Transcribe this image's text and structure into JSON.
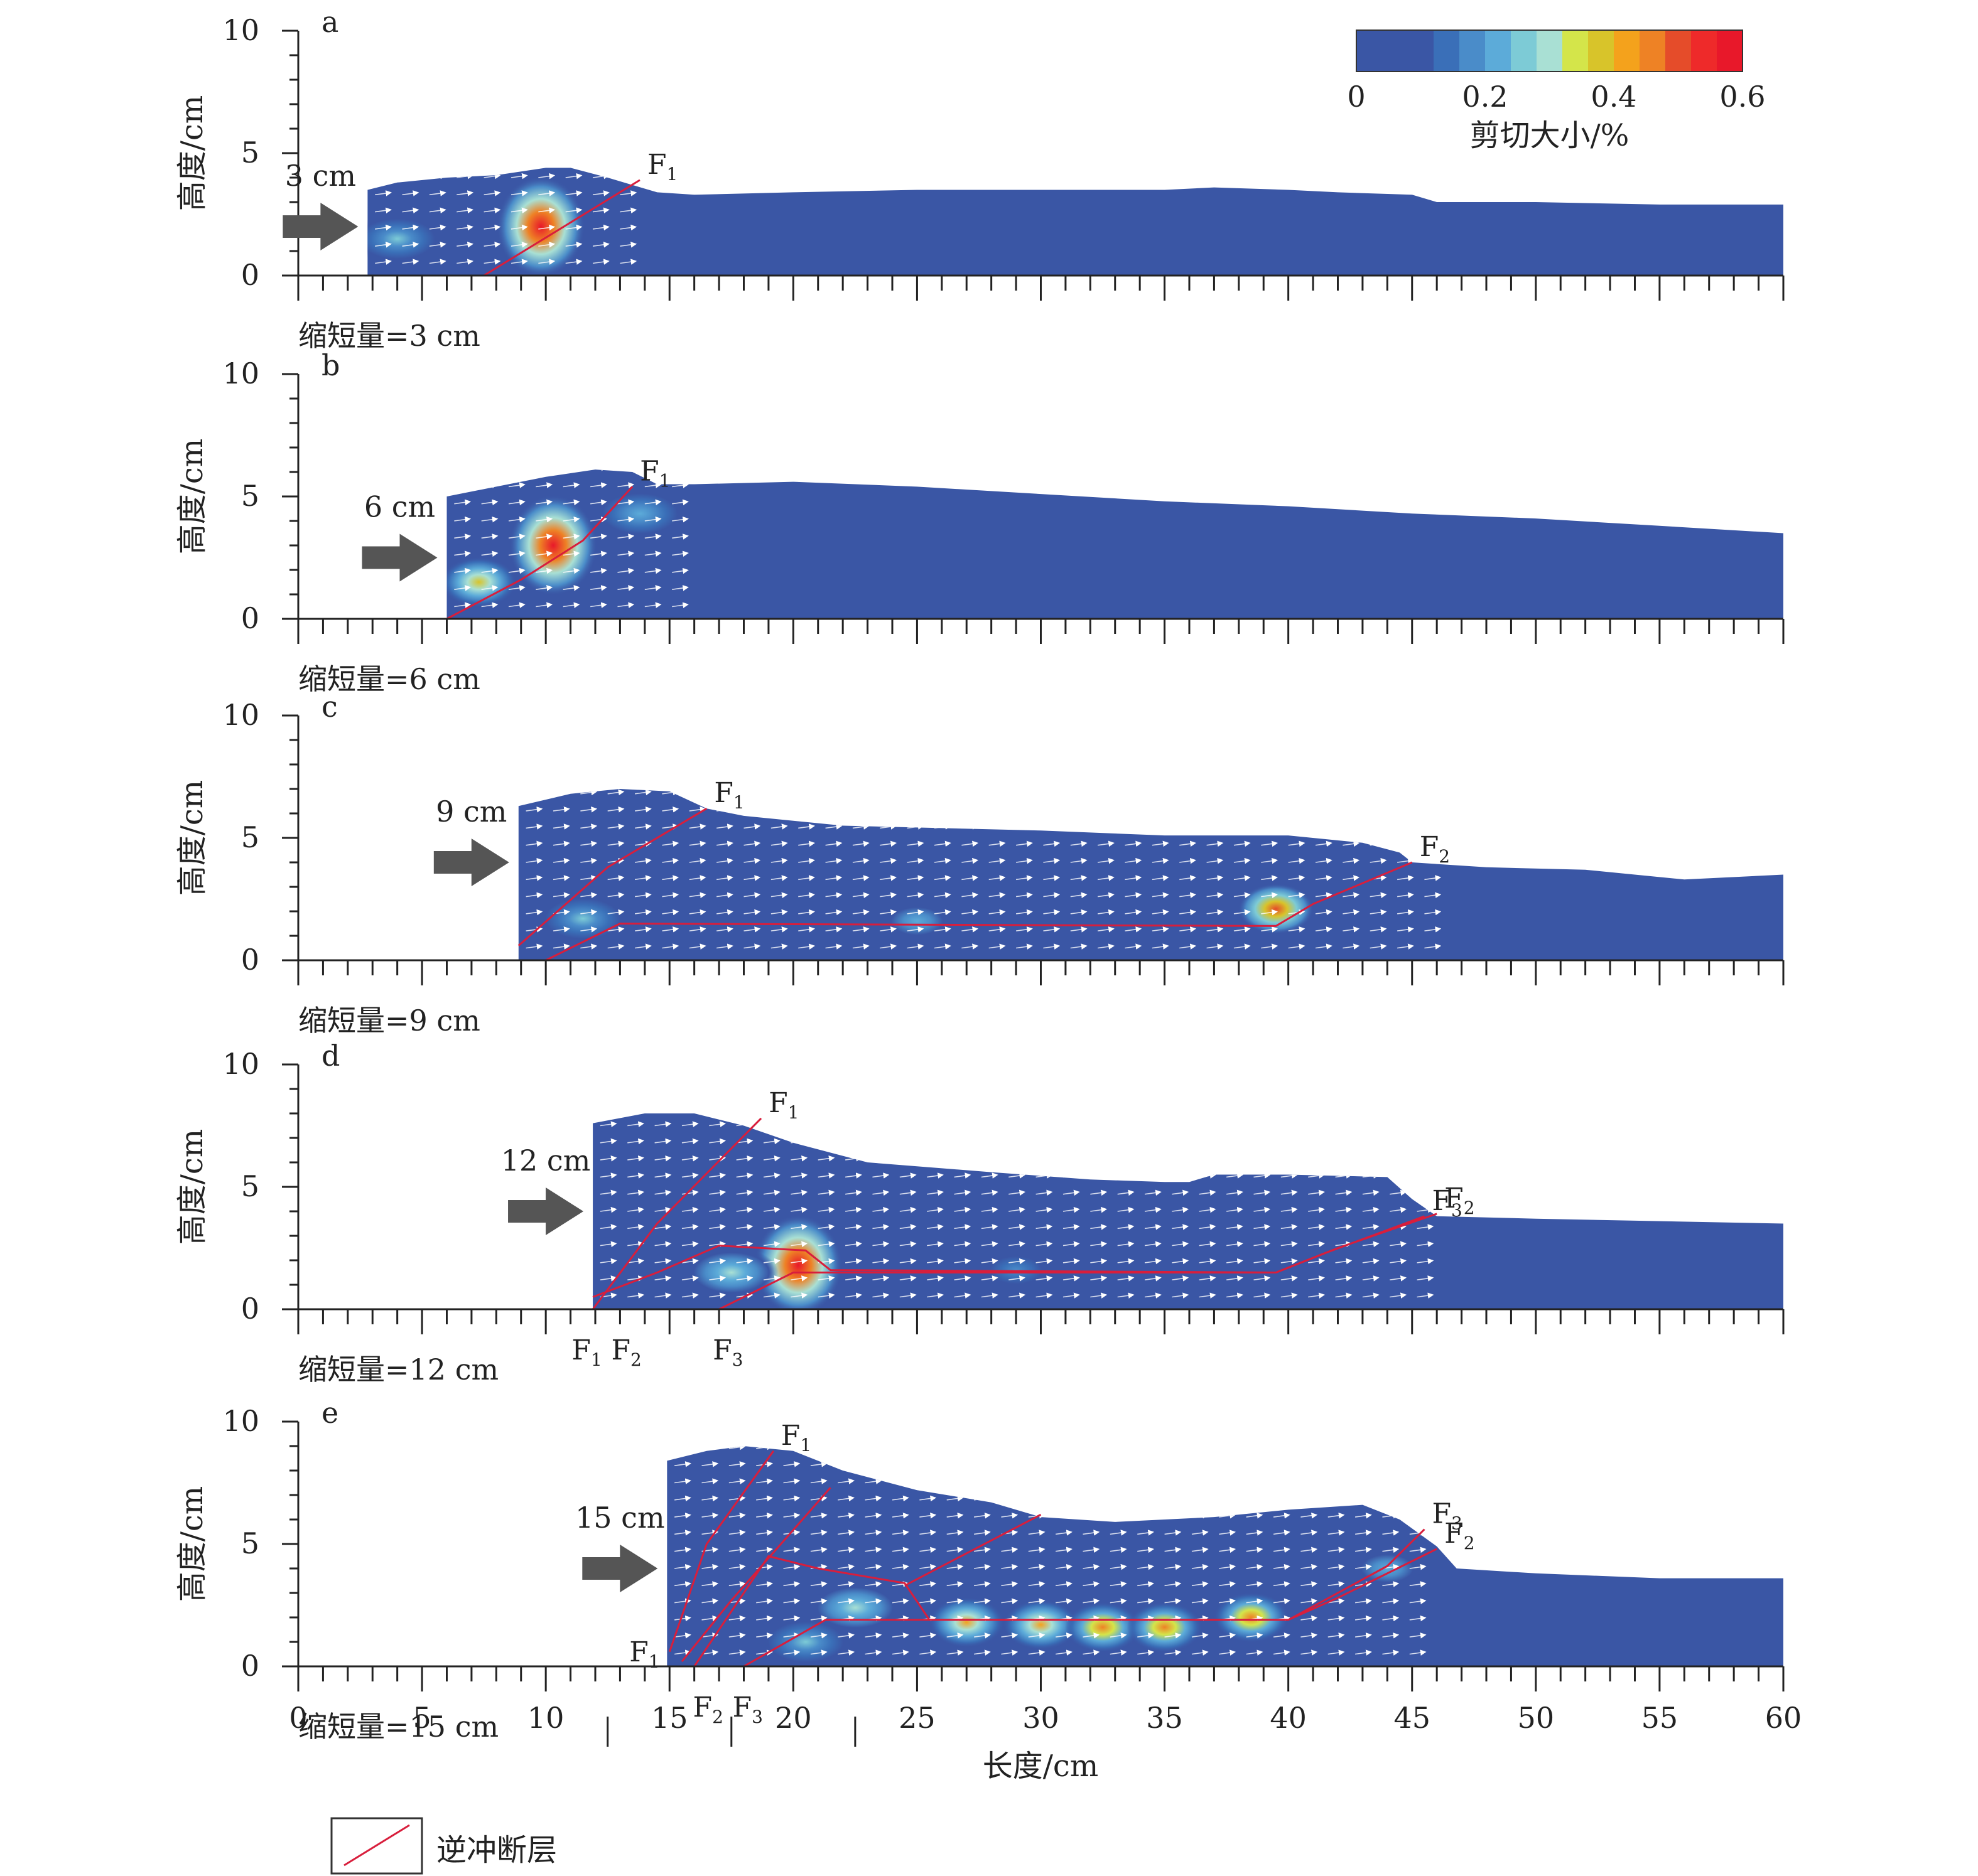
{
  "figure": {
    "y_axis_label": "高度/cm",
    "x_axis_label": "长度/cm",
    "legend": {
      "label": "逆冲断层",
      "line_color": "#d81e3c"
    }
  },
  "colorbar": {
    "label": "剪切大小/%",
    "tick_labels": [
      "0",
      "0.2",
      "0.4",
      "0.6"
    ],
    "ticks": [
      0,
      0.2,
      0.4,
      0.6
    ],
    "range": [
      0,
      0.6
    ],
    "colors": [
      "#3a56a5",
      "#3a56a5",
      "#3a56a5",
      "#3a6fb8",
      "#4a8cc9",
      "#5cabd9",
      "#7dcbd6",
      "#a9e0d4",
      "#d4e54a",
      "#d8c42a",
      "#f4a21c",
      "#ee8225",
      "#e54c2a",
      "#ee2a2a",
      "#e8182a"
    ]
  },
  "chart_data": {
    "type": "heatmap",
    "description_of_axes": "x = length (cm), y = height (cm)",
    "xlim": [
      0,
      60
    ],
    "ylim": [
      0,
      10
    ],
    "x_ticks": [
      0,
      5,
      10,
      15,
      20,
      25,
      30,
      35,
      40,
      45,
      50,
      55,
      60
    ],
    "x_tick_labels": [
      "0",
      "5",
      "10",
      "15",
      "20",
      "25",
      "30",
      "35",
      "40",
      "45",
      "50",
      "55",
      "60"
    ],
    "y_ticks": [
      0,
      5,
      10
    ],
    "y_tick_labels": [
      "0",
      "5",
      "10"
    ],
    "panels": [
      {
        "panel": "a",
        "shortening_label": "缩短量=3 cm",
        "push_label": "3 cm",
        "surface": [
          [
            2.8,
            3.5
          ],
          [
            4,
            3.8
          ],
          [
            6,
            4.0
          ],
          [
            8,
            4.1
          ],
          [
            10,
            4.4
          ],
          [
            11,
            4.4
          ],
          [
            12.5,
            4.0
          ],
          [
            13.5,
            3.7
          ],
          [
            14.5,
            3.4
          ],
          [
            16,
            3.3
          ],
          [
            20,
            3.4
          ],
          [
            25,
            3.5
          ],
          [
            30,
            3.5
          ],
          [
            35,
            3.5
          ],
          [
            37,
            3.6
          ],
          [
            40,
            3.5
          ],
          [
            42,
            3.4
          ],
          [
            45,
            3.3
          ],
          [
            46,
            3.0
          ],
          [
            50,
            3.0
          ],
          [
            55,
            2.9
          ],
          [
            60,
            2.9
          ]
        ],
        "faults": [
          {
            "name": "F1",
            "label": "F",
            "sub": "1",
            "points": [
              [
                7.5,
                0
              ],
              [
                13.8,
                3.9
              ]
            ]
          }
        ],
        "hotspots": [
          {
            "x": 9.8,
            "y": 2.0,
            "level": 0.6
          },
          {
            "x": 4.0,
            "y": 1.5,
            "level": 0.25
          }
        ]
      },
      {
        "panel": "b",
        "shortening_label": "缩短量=6 cm",
        "push_label": "6 cm",
        "surface": [
          [
            6,
            5.0
          ],
          [
            8,
            5.4
          ],
          [
            10,
            5.8
          ],
          [
            12,
            6.1
          ],
          [
            13.5,
            6.0
          ],
          [
            14.5,
            5.5
          ],
          [
            16,
            5.5
          ],
          [
            20,
            5.6
          ],
          [
            25,
            5.4
          ],
          [
            30,
            5.1
          ],
          [
            35,
            4.8
          ],
          [
            40,
            4.6
          ],
          [
            45,
            4.3
          ],
          [
            50,
            4.1
          ],
          [
            55,
            3.8
          ],
          [
            60,
            3.5
          ]
        ],
        "faults": [
          {
            "name": "F1",
            "label": "F",
            "sub": "1",
            "points": [
              [
                6,
                0
              ],
              [
                9,
                1.6
              ],
              [
                11.5,
                3.2
              ],
              [
                13.5,
                5.4
              ]
            ]
          }
        ],
        "hotspots": [
          {
            "x": 10.3,
            "y": 3.0,
            "level": 0.6
          },
          {
            "x": 7.3,
            "y": 1.5,
            "level": 0.4
          },
          {
            "x": 13.8,
            "y": 4.3,
            "level": 0.22
          }
        ]
      },
      {
        "panel": "c",
        "shortening_label": "缩短量=9 cm",
        "push_label": "9 cm",
        "surface": [
          [
            8.9,
            6.3
          ],
          [
            11,
            6.8
          ],
          [
            13,
            7.0
          ],
          [
            15,
            6.9
          ],
          [
            16.5,
            6.2
          ],
          [
            18,
            5.9
          ],
          [
            22,
            5.5
          ],
          [
            26,
            5.4
          ],
          [
            30,
            5.3
          ],
          [
            35,
            5.1
          ],
          [
            37,
            5.1
          ],
          [
            40,
            5.1
          ],
          [
            43,
            4.8
          ],
          [
            44.5,
            4.4
          ],
          [
            45,
            4.0
          ],
          [
            48,
            3.8
          ],
          [
            52,
            3.7
          ],
          [
            56,
            3.3
          ],
          [
            60,
            3.5
          ]
        ],
        "faults": [
          {
            "name": "F1",
            "label": "F",
            "sub": "1",
            "points": [
              [
                8.9,
                0.6
              ],
              [
                12.5,
                3.8
              ],
              [
                16.5,
                6.2
              ]
            ]
          },
          {
            "name": "F2",
            "label": "F",
            "sub": "2",
            "points": [
              [
                10,
                0
              ],
              [
                13,
                1.5
              ],
              [
                39.5,
                1.4
              ],
              [
                41,
                2.3
              ],
              [
                45,
                4.0
              ]
            ]
          }
        ],
        "hotspots": [
          {
            "x": 39.5,
            "y": 2.1,
            "level": 0.5
          },
          {
            "x": 11.5,
            "y": 1.7,
            "level": 0.25
          },
          {
            "x": 25,
            "y": 1.6,
            "level": 0.2
          }
        ]
      },
      {
        "panel": "d",
        "shortening_label": "缩短量=12 cm",
        "push_label": "12 cm",
        "surface": [
          [
            11.9,
            7.6
          ],
          [
            14,
            8.0
          ],
          [
            16,
            8.0
          ],
          [
            18,
            7.5
          ],
          [
            20,
            6.8
          ],
          [
            23,
            6.0
          ],
          [
            28,
            5.6
          ],
          [
            32,
            5.3
          ],
          [
            35,
            5.2
          ],
          [
            36,
            5.2
          ],
          [
            37,
            5.5
          ],
          [
            40,
            5.5
          ],
          [
            44,
            5.4
          ],
          [
            45,
            4.5
          ],
          [
            46,
            3.8
          ],
          [
            50,
            3.7
          ],
          [
            55,
            3.6
          ],
          [
            60,
            3.5
          ]
        ],
        "faults": [
          {
            "name": "F1",
            "label": "F",
            "sub": "1",
            "points": [
              [
                11.9,
                0
              ],
              [
                14.5,
                3.5
              ],
              [
                18.7,
                7.8
              ]
            ]
          },
          {
            "name": "F2",
            "label": "F",
            "sub": "2",
            "points": [
              [
                11.9,
                0.5
              ],
              [
                14.5,
                1.5
              ],
              [
                17,
                2.6
              ],
              [
                20.5,
                2.4
              ],
              [
                21.5,
                1.6
              ],
              [
                39.5,
                1.5
              ],
              [
                42,
                2.5
              ],
              [
                46,
                3.9
              ]
            ]
          },
          {
            "name": "F3",
            "label": "F",
            "sub": "3",
            "points": [
              [
                17,
                0
              ],
              [
                20,
                1.5
              ],
              [
                39.5,
                1.5
              ],
              [
                41.5,
                2.3
              ],
              [
                45.5,
                3.8
              ]
            ]
          }
        ],
        "hotspots": [
          {
            "x": 20.2,
            "y": 1.8,
            "level": 0.6
          },
          {
            "x": 17.5,
            "y": 1.5,
            "level": 0.3
          },
          {
            "x": 29,
            "y": 1.6,
            "level": 0.18
          }
        ],
        "bottom_labels": [
          {
            "label": "F",
            "sub": "1",
            "x": 11.3
          },
          {
            "label": "F",
            "sub": "2",
            "x": 12.9
          },
          {
            "label": "F",
            "sub": "3",
            "x": 17.0
          }
        ]
      },
      {
        "panel": "e",
        "shortening_label": "缩短量=15 cm",
        "push_label": "15 cm",
        "surface": [
          [
            14.9,
            8.4
          ],
          [
            16.5,
            8.8
          ],
          [
            18,
            9.0
          ],
          [
            20,
            8.8
          ],
          [
            22,
            8.0
          ],
          [
            25,
            7.2
          ],
          [
            28,
            6.7
          ],
          [
            30,
            6.1
          ],
          [
            33,
            5.9
          ],
          [
            37,
            6.1
          ],
          [
            40,
            6.4
          ],
          [
            43,
            6.6
          ],
          [
            44.5,
            6.0
          ],
          [
            46,
            4.9
          ],
          [
            46.8,
            4.0
          ],
          [
            50,
            3.8
          ],
          [
            55,
            3.6
          ],
          [
            60,
            3.6
          ]
        ],
        "faults": [
          {
            "name": "F1",
            "label": "F",
            "sub": "1",
            "points": [
              [
                15,
                0.6
              ],
              [
                16.5,
                5
              ],
              [
                19.2,
                8.8
              ]
            ]
          },
          {
            "name": "F2a",
            "label": "",
            "sub": "",
            "points": [
              [
                15.5,
                0.2
              ],
              [
                17.5,
                2.7
              ],
              [
                21.5,
                7.3
              ]
            ]
          },
          {
            "name": "F2",
            "label": "F",
            "sub": "2",
            "points": [
              [
                16,
                0
              ],
              [
                19,
                4.5
              ],
              [
                21,
                4.0
              ],
              [
                24.5,
                3.4
              ],
              [
                25.5,
                1.9
              ],
              [
                40,
                1.9
              ],
              [
                42,
                2.8
              ],
              [
                46,
                4.8
              ]
            ]
          },
          {
            "name": "F3",
            "label": "F",
            "sub": "3",
            "points": [
              [
                18,
                0
              ],
              [
                21.3,
                1.9
              ],
              [
                40,
                1.9
              ],
              [
                44,
                4.1
              ],
              [
                45.5,
                5.6
              ]
            ]
          },
          {
            "name": "F3b",
            "label": "",
            "sub": "",
            "points": [
              [
                24.5,
                3.3
              ],
              [
                30,
                6.2
              ]
            ]
          }
        ],
        "hotspots": [
          {
            "x": 27,
            "y": 1.8,
            "level": 0.42
          },
          {
            "x": 30,
            "y": 1.7,
            "level": 0.42
          },
          {
            "x": 32.5,
            "y": 1.6,
            "level": 0.45
          },
          {
            "x": 35,
            "y": 1.6,
            "level": 0.45
          },
          {
            "x": 38.5,
            "y": 2.0,
            "level": 0.45
          },
          {
            "x": 22.5,
            "y": 2.4,
            "level": 0.3
          },
          {
            "x": 20.5,
            "y": 1.0,
            "level": 0.25
          },
          {
            "x": 44,
            "y": 4.0,
            "level": 0.2
          }
        ],
        "bottom_labels": [
          {
            "label": "F",
            "sub": "2",
            "x": 16.2
          },
          {
            "label": "F",
            "sub": "3",
            "x": 17.8
          }
        ],
        "left_fault_label": {
          "label": "F",
          "sub": "1"
        }
      }
    ]
  }
}
